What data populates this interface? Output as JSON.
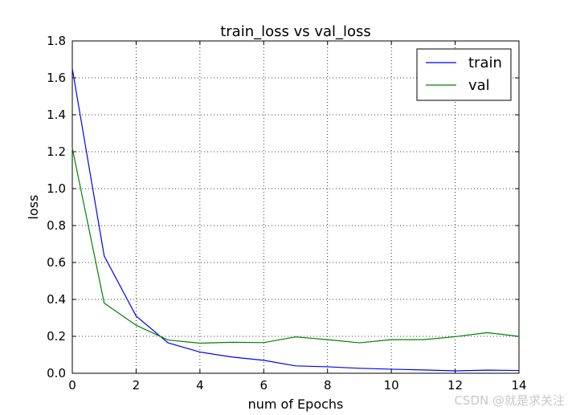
{
  "chart_data": {
    "type": "line",
    "title": "train_loss vs val_loss",
    "xlabel": "num of Epochs",
    "ylabel": "loss",
    "xlim": [
      0,
      14
    ],
    "ylim": [
      0,
      1.8
    ],
    "xticks": [
      0,
      2,
      4,
      6,
      8,
      10,
      12,
      14
    ],
    "yticks": [
      0.0,
      0.2,
      0.4,
      0.6,
      0.8,
      1.0,
      1.2,
      1.4,
      1.6,
      1.8
    ],
    "grid": true,
    "legend_position": "top-right",
    "x": [
      0,
      1,
      2,
      3,
      4,
      5,
      6,
      7,
      8,
      9,
      10,
      11,
      12,
      13,
      14
    ],
    "series": [
      {
        "name": "train",
        "color": "#0000ff",
        "values": [
          1.65,
          0.635,
          0.31,
          0.165,
          0.115,
          0.088,
          0.07,
          0.04,
          0.035,
          0.027,
          0.022,
          0.018,
          0.013,
          0.017,
          0.015
        ]
      },
      {
        "name": "val",
        "color": "#008000",
        "values": [
          1.22,
          0.38,
          0.26,
          0.18,
          0.163,
          0.168,
          0.166,
          0.197,
          0.182,
          0.165,
          0.182,
          0.182,
          0.198,
          0.22,
          0.2
        ]
      }
    ]
  },
  "watermark": "CSDN @就是求关注"
}
